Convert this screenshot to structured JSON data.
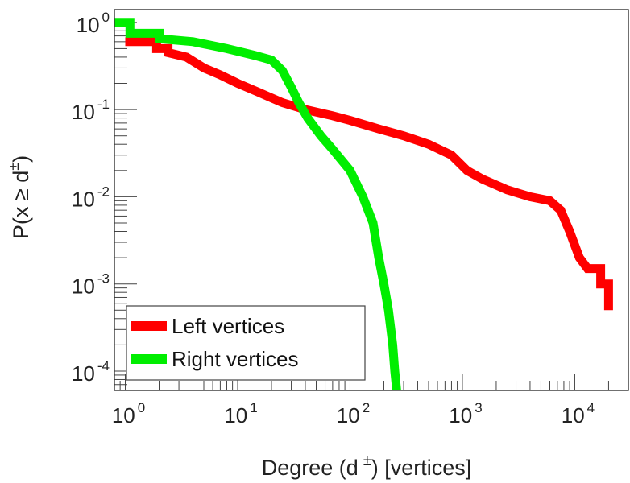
{
  "chart_data": {
    "type": "line",
    "x_scale": "log",
    "y_scale": "log",
    "xlim": [
      0.8,
      30000
    ],
    "ylim": [
      6e-05,
      1.4
    ],
    "x_ticks": [
      {
        "value": 1,
        "base": "10",
        "exp": "0"
      },
      {
        "value": 10,
        "base": "10",
        "exp": "1"
      },
      {
        "value": 100,
        "base": "10",
        "exp": "2"
      },
      {
        "value": 1000,
        "base": "10",
        "exp": "3"
      },
      {
        "value": 10000,
        "base": "10",
        "exp": "4"
      }
    ],
    "y_ticks": [
      {
        "value": 1,
        "base": "10",
        "exp": "0"
      },
      {
        "value": 0.1,
        "base": "10",
        "exp": "-1"
      },
      {
        "value": 0.01,
        "base": "10",
        "exp": "-2"
      },
      {
        "value": 0.001,
        "base": "10",
        "exp": "-3"
      },
      {
        "value": 0.0001,
        "base": "10",
        "exp": "-4"
      }
    ],
    "xlabel": {
      "prefix": "Degree (d",
      "sup": "±",
      "suffix": ") [vertices]"
    },
    "ylabel": {
      "prefix": "P(x ≥ d",
      "sup": "±",
      "suffix": ")"
    },
    "grid": false,
    "legend_position": "bottom-left",
    "series": [
      {
        "name": "Left vertices",
        "color": "#ff0000",
        "points": [
          [
            1.0,
            0.6
          ],
          [
            1.9,
            0.6
          ],
          [
            1.9,
            0.5
          ],
          [
            2.4,
            0.5
          ],
          [
            2.4,
            0.45
          ],
          [
            3.5,
            0.4
          ],
          [
            5,
            0.3
          ],
          [
            7,
            0.25
          ],
          [
            10,
            0.2
          ],
          [
            15,
            0.16
          ],
          [
            25,
            0.12
          ],
          [
            40,
            0.1
          ],
          [
            70,
            0.085
          ],
          [
            100,
            0.075
          ],
          [
            180,
            0.06
          ],
          [
            300,
            0.05
          ],
          [
            500,
            0.04
          ],
          [
            800,
            0.03
          ],
          [
            1100,
            0.02
          ],
          [
            1500,
            0.016
          ],
          [
            2500,
            0.012
          ],
          [
            4000,
            0.01
          ],
          [
            6000,
            0.009
          ],
          [
            7500,
            0.007
          ],
          [
            9000,
            0.004
          ],
          [
            11000,
            0.002
          ],
          [
            13000,
            0.0015
          ],
          [
            17000,
            0.0015
          ],
          [
            17000,
            0.001
          ],
          [
            20000,
            0.001
          ],
          [
            20000,
            0.0005
          ]
        ]
      },
      {
        "name": "Right vertices",
        "color": "#00ee00",
        "points": [
          [
            0.8,
            1.0
          ],
          [
            1.1,
            1.0
          ],
          [
            1.1,
            0.75
          ],
          [
            2.0,
            0.75
          ],
          [
            2.0,
            0.65
          ],
          [
            4,
            0.6
          ],
          [
            8,
            0.5
          ],
          [
            14,
            0.42
          ],
          [
            20,
            0.37
          ],
          [
            25,
            0.28
          ],
          [
            30,
            0.18
          ],
          [
            35,
            0.12
          ],
          [
            42,
            0.08
          ],
          [
            55,
            0.05
          ],
          [
            70,
            0.035
          ],
          [
            100,
            0.02
          ],
          [
            130,
            0.01
          ],
          [
            160,
            0.005
          ],
          [
            180,
            0.002
          ],
          [
            200,
            0.001
          ],
          [
            220,
            0.0005
          ],
          [
            240,
            0.0002
          ],
          [
            250,
            0.0001
          ],
          [
            260,
            6e-05
          ]
        ]
      }
    ]
  }
}
